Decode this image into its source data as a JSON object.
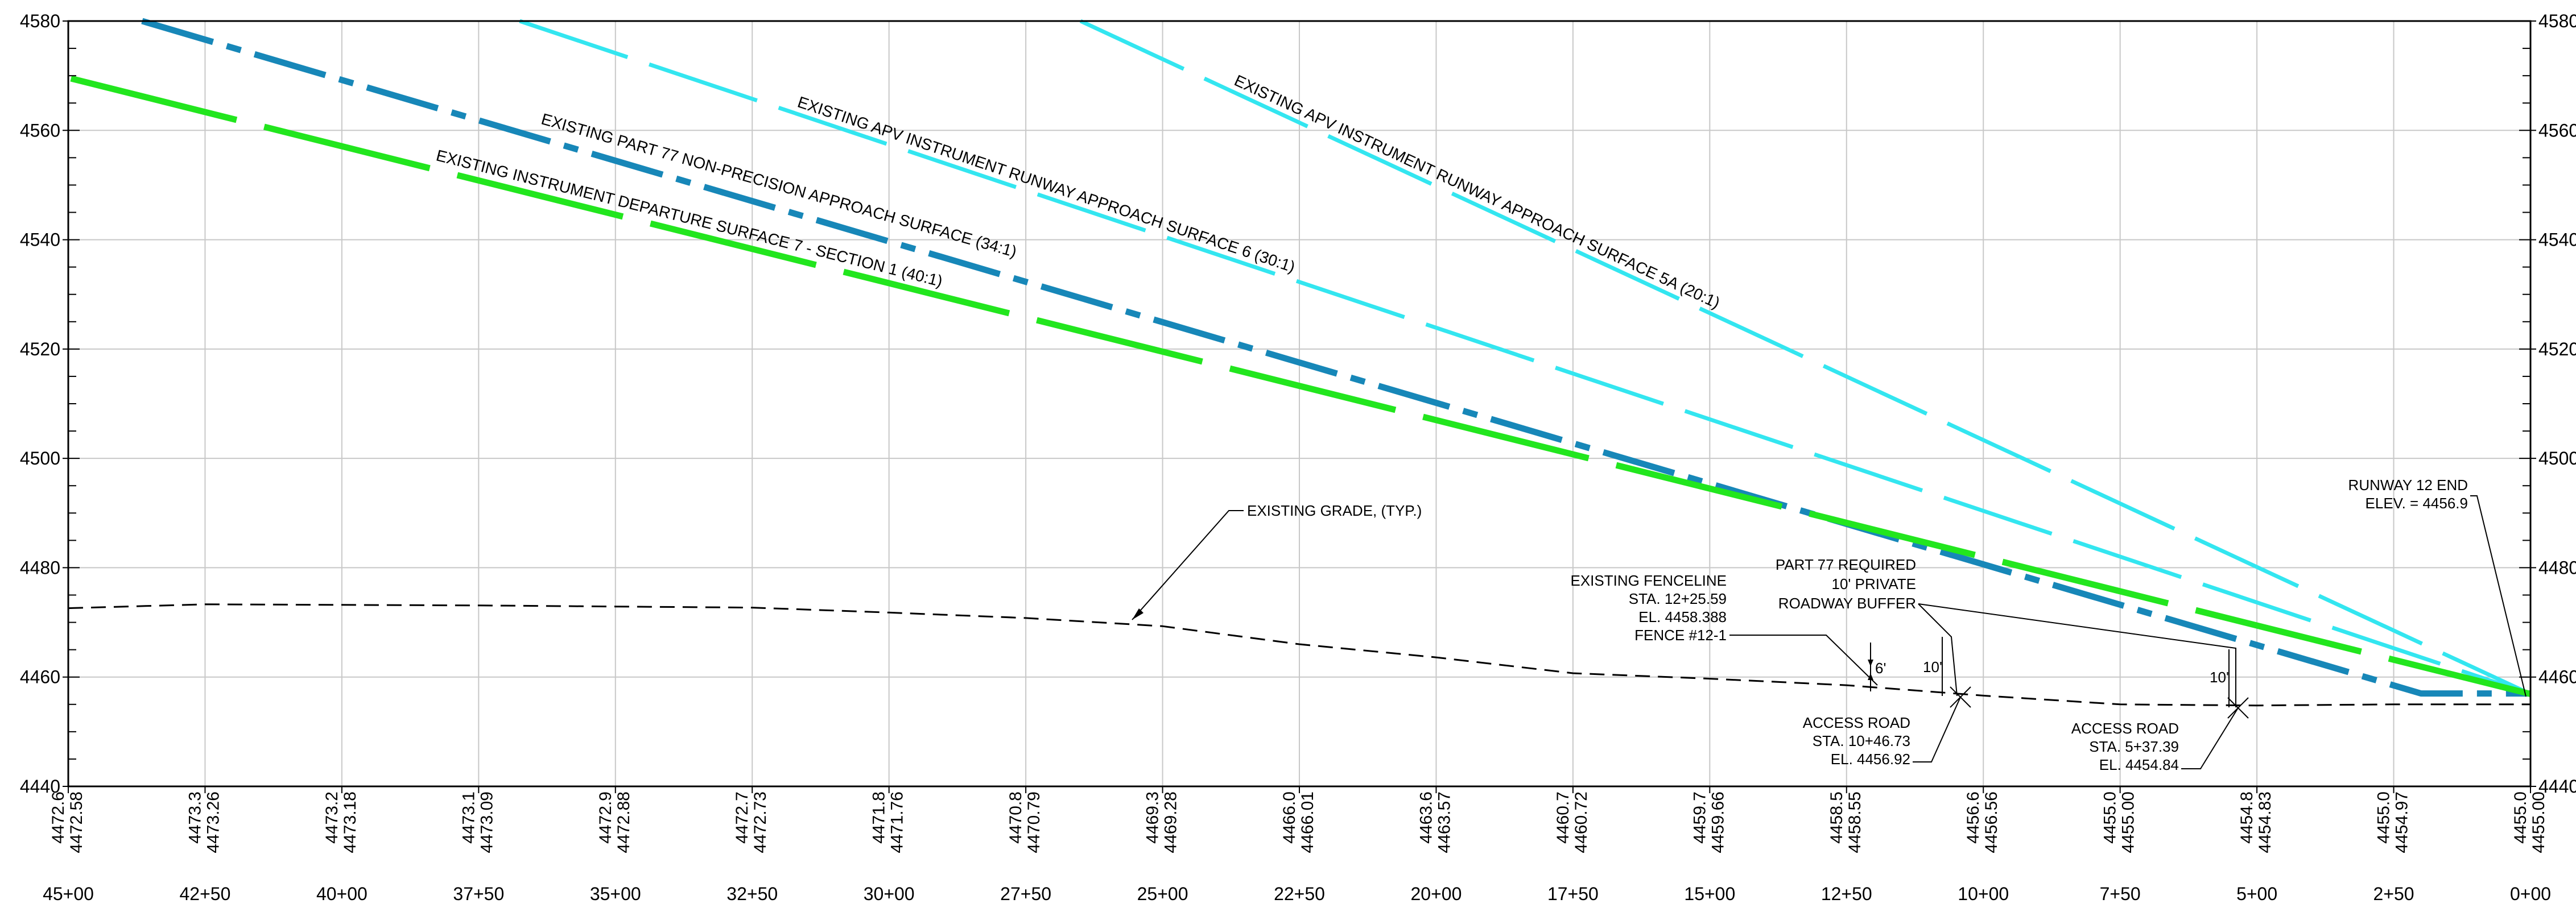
{
  "chart_data": {
    "type": "line",
    "title": "",
    "xlabel": "",
    "ylabel": "",
    "x_axis": {
      "direction": "right-to-left",
      "range_ft": [
        0,
        4500
      ],
      "tick_labels": [
        "45+00",
        "42+50",
        "40+00",
        "37+50",
        "35+00",
        "32+50",
        "30+00",
        "27+50",
        "25+00",
        "22+50",
        "20+00",
        "17+50",
        "15+00",
        "12+50",
        "10+00",
        "7+50",
        "5+00",
        "2+50",
        "0+00"
      ],
      "tick_values_ft": [
        4500,
        4250,
        4000,
        3750,
        3500,
        3250,
        3000,
        2750,
        2500,
        2250,
        2000,
        1750,
        1500,
        1250,
        1000,
        750,
        500,
        250,
        0
      ]
    },
    "y_axis": {
      "range": [
        4440,
        4580
      ],
      "ticks": [
        4440,
        4460,
        4480,
        4500,
        4520,
        4540,
        4560,
        4580
      ],
      "tick_labels": [
        "4440",
        "4460",
        "4480",
        "4500",
        "4520",
        "4540",
        "4560",
        "4580"
      ],
      "grid": true,
      "labels_both_sides": true
    },
    "elevation_labels": {
      "stations_ft": [
        4500,
        4250,
        4000,
        3750,
        3500,
        3250,
        3000,
        2750,
        2500,
        2250,
        2000,
        1750,
        1500,
        1250,
        1000,
        750,
        500,
        250,
        0
      ],
      "existing": [
        "4472.6",
        "4473.3",
        "4473.2",
        "4473.1",
        "4472.9",
        "4472.7",
        "4471.8",
        "4470.8",
        "4469.3",
        "4466.0",
        "4463.6",
        "4460.7",
        "4459.7",
        "4458.5",
        "4456.6",
        "4455.0",
        "4454.8",
        "4455.0",
        "4455.0"
      ],
      "proposed": [
        "4472.58",
        "4473.26",
        "4473.18",
        "4473.09",
        "4472.88",
        "4472.73",
        "4471.76",
        "4470.79",
        "4469.28",
        "4466.01",
        "4463.57",
        "4460.72",
        "4459.66",
        "4458.55",
        "4456.56",
        "4455.00",
        "4454.83",
        "4454.97",
        "4455.00"
      ]
    },
    "series": [
      {
        "label": "EXISTING APV INSTRUMENT RUNWAY APPROACH SURFACE 5A (20:1)",
        "color": "#33e6f0",
        "style": "long-dash",
        "x": [
          2650,
          0
        ],
        "y": [
          4580,
          4456.9
        ]
      },
      {
        "label": "EXISTING APV INSTRUMENT RUNWAY APPROACH SURFACE 6 (30:1)",
        "color": "#33e6f0",
        "style": "long-dash",
        "x": [
          3675,
          0
        ],
        "y": [
          4580,
          4456.9
        ]
      },
      {
        "label": "EXISTING PART 77 NON-PRECISION APPROACH SURFACE (34:1)",
        "color": "#1787b8",
        "style": "dash-dot",
        "x": [
          4365,
          200,
          0
        ],
        "y": [
          4580,
          4457,
          4457
        ]
      },
      {
        "label": "EXISTING INSTRUMENT DEPARTURE SURFACE 7 - SECTION 1 (40:1)",
        "color": "#22e61e",
        "style": "long-dash",
        "x": [
          4495,
          0
        ],
        "y": [
          4569.5,
          4456.9
        ]
      },
      {
        "label": "EXISTING GRADE, (TYP.)",
        "color": "#000000",
        "style": "dashed",
        "x": [
          4500,
          4250,
          4000,
          3750,
          3500,
          3250,
          3000,
          2750,
          2500,
          2250,
          2000,
          1750,
          1500,
          1250,
          1000,
          750,
          500,
          250,
          0
        ],
        "y": [
          4472.6,
          4473.3,
          4473.2,
          4473.1,
          4472.9,
          4472.7,
          4471.8,
          4470.8,
          4469.3,
          4466.0,
          4463.6,
          4460.7,
          4459.7,
          4458.5,
          4456.6,
          4455.0,
          4454.8,
          4455.0,
          4455.0
        ]
      }
    ],
    "annotations": {
      "runway_end": [
        "RUNWAY 12 END",
        "ELEV. = 4456.9"
      ],
      "fenceline": [
        "EXISTING FENCELINE",
        "STA.   12+25.59",
        "EL.     4458.388",
        "FENCE #12-1"
      ],
      "fence_offset": "6'",
      "buffer": [
        "PART 77 REQUIRED",
        "10' PRIVATE",
        "ROADWAY BUFFER"
      ],
      "buffer_offset_1": "10'",
      "buffer_offset_2": "10'",
      "access_road_1": [
        "ACCESS ROAD",
        "STA.   10+46.73",
        "EL.     4456.92"
      ],
      "access_road_2": [
        "ACCESS ROAD",
        "STA.   5+37.39",
        "EL.     4454.84"
      ]
    }
  }
}
